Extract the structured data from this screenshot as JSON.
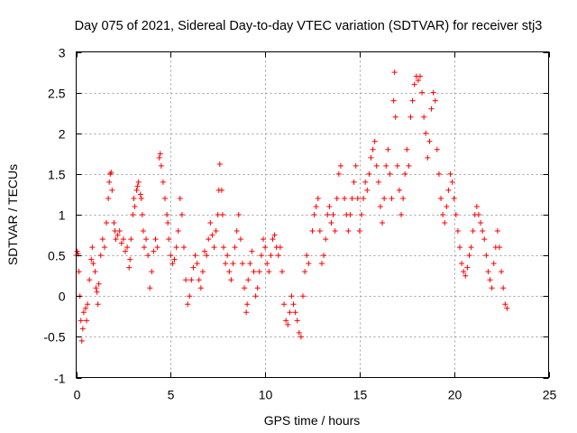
{
  "chart_data": {
    "type": "scatter",
    "title": "Day 075 of 2021, Sidereal Day-to-day VTEC variation (SDTVAR) for receiver stj3",
    "xlabel": "GPS time / hours",
    "ylabel": "SDTVAR / TECUs",
    "xlim": [
      0,
      25
    ],
    "ylim": [
      -1,
      3
    ],
    "xticks": [
      0,
      5,
      10,
      15,
      20,
      25
    ],
    "yticks": [
      -1,
      -0.5,
      0,
      0.5,
      1,
      1.5,
      2,
      2.5,
      3
    ],
    "xtick_labels": [
      "0",
      "5",
      "10",
      "15",
      "20",
      "25"
    ],
    "ytick_labels": [
      "-1",
      "-0.5",
      "0",
      "0.5",
      "1",
      "1.5",
      "2",
      "2.5",
      "3"
    ],
    "grid": true,
    "legend": "none",
    "marker": "+",
    "color": "#ff0000",
    "series": [
      {
        "name": "SDTVAR",
        "points": [
          [
            0.0,
            0.5
          ],
          [
            0.05,
            0.55
          ],
          [
            0.1,
            0.52
          ],
          [
            0.15,
            0.3
          ],
          [
            0.2,
            0.0
          ],
          [
            0.25,
            -0.3
          ],
          [
            0.3,
            -0.55
          ],
          [
            0.35,
            -0.4
          ],
          [
            0.4,
            -0.2
          ],
          [
            0.5,
            -0.15
          ],
          [
            0.55,
            -0.3
          ],
          [
            0.6,
            -0.1
          ],
          [
            0.7,
            0.2
          ],
          [
            0.8,
            0.45
          ],
          [
            0.85,
            0.6
          ],
          [
            0.9,
            0.4
          ],
          [
            1.0,
            0.3
          ],
          [
            1.05,
            0.1
          ],
          [
            1.1,
            0.05
          ],
          [
            1.15,
            -0.1
          ],
          [
            1.2,
            0.15
          ],
          [
            1.3,
            0.5
          ],
          [
            1.4,
            0.7
          ],
          [
            1.5,
            0.6
          ],
          [
            1.6,
            0.9
          ],
          [
            1.7,
            1.2
          ],
          [
            1.75,
            1.4
          ],
          [
            1.8,
            1.5
          ],
          [
            1.85,
            1.52
          ],
          [
            1.9,
            1.3
          ],
          [
            2.0,
            0.9
          ],
          [
            2.05,
            0.8
          ],
          [
            2.1,
            0.7
          ],
          [
            2.2,
            0.75
          ],
          [
            2.3,
            0.8
          ],
          [
            2.4,
            0.65
          ],
          [
            2.5,
            0.7
          ],
          [
            2.6,
            0.55
          ],
          [
            2.7,
            0.6
          ],
          [
            2.8,
            0.35
          ],
          [
            2.85,
            0.45
          ],
          [
            2.9,
            0.7
          ],
          [
            3.0,
            1.0
          ],
          [
            3.05,
            1.2
          ],
          [
            3.1,
            1.1
          ],
          [
            3.2,
            1.3
          ],
          [
            3.25,
            1.35
          ],
          [
            3.3,
            1.4
          ],
          [
            3.4,
            1.25
          ],
          [
            3.45,
            1.2
          ],
          [
            3.5,
            1.0
          ],
          [
            3.55,
            0.8
          ],
          [
            3.6,
            0.6
          ],
          [
            3.7,
            0.7
          ],
          [
            3.8,
            0.5
          ],
          [
            3.9,
            0.1
          ],
          [
            4.0,
            0.3
          ],
          [
            4.1,
            0.55
          ],
          [
            4.2,
            0.7
          ],
          [
            4.3,
            0.6
          ],
          [
            4.4,
            1.7
          ],
          [
            4.45,
            1.75
          ],
          [
            4.5,
            1.6
          ],
          [
            4.6,
            1.4
          ],
          [
            4.7,
            1.2
          ],
          [
            4.8,
            1.0
          ],
          [
            4.85,
            0.9
          ],
          [
            4.9,
            0.7
          ],
          [
            5.0,
            0.5
          ],
          [
            5.1,
            0.4
          ],
          [
            5.2,
            0.45
          ],
          [
            5.3,
            0.6
          ],
          [
            5.4,
            0.8
          ],
          [
            5.5,
            1.2
          ],
          [
            5.6,
            1.0
          ],
          [
            5.7,
            0.6
          ],
          [
            5.8,
            0.2
          ],
          [
            5.9,
            -0.1
          ],
          [
            6.0,
            0.0
          ],
          [
            6.1,
            0.2
          ],
          [
            6.2,
            0.35
          ],
          [
            6.3,
            0.5
          ],
          [
            6.4,
            0.4
          ],
          [
            6.5,
            0.2
          ],
          [
            6.6,
            0.1
          ],
          [
            6.7,
            0.3
          ],
          [
            6.8,
            0.55
          ],
          [
            6.9,
            0.5
          ],
          [
            7.0,
            0.7
          ],
          [
            7.1,
            0.9
          ],
          [
            7.2,
            0.75
          ],
          [
            7.3,
            0.6
          ],
          [
            7.4,
            0.8
          ],
          [
            7.5,
            1.0
          ],
          [
            7.55,
            1.3
          ],
          [
            7.6,
            1.62
          ],
          [
            7.7,
            1.3
          ],
          [
            7.75,
            1.0
          ],
          [
            7.8,
            0.6
          ],
          [
            7.9,
            0.4
          ],
          [
            8.0,
            0.5
          ],
          [
            8.1,
            0.3
          ],
          [
            8.2,
            0.2
          ],
          [
            8.3,
            0.4
          ],
          [
            8.4,
            0.6
          ],
          [
            8.5,
            0.8
          ],
          [
            8.6,
            1.0
          ],
          [
            8.7,
            0.7
          ],
          [
            8.8,
            0.4
          ],
          [
            8.9,
            0.1
          ],
          [
            9.0,
            -0.2
          ],
          [
            9.05,
            -0.1
          ],
          [
            9.1,
            0.2
          ],
          [
            9.2,
            0.4
          ],
          [
            9.3,
            0.55
          ],
          [
            9.4,
            0.3
          ],
          [
            9.5,
            0.0
          ],
          [
            9.6,
            0.1
          ],
          [
            9.7,
            0.3
          ],
          [
            9.8,
            0.5
          ],
          [
            9.9,
            0.7
          ],
          [
            10.0,
            0.6
          ],
          [
            10.1,
            0.4
          ],
          [
            10.2,
            0.3
          ],
          [
            10.3,
            0.5
          ],
          [
            10.4,
            0.7
          ],
          [
            10.5,
            0.75
          ],
          [
            10.6,
            0.6
          ],
          [
            10.7,
            0.5
          ],
          [
            10.8,
            0.6
          ],
          [
            10.9,
            0.3
          ],
          [
            11.0,
            -0.1
          ],
          [
            11.1,
            -0.3
          ],
          [
            11.2,
            -0.35
          ],
          [
            11.3,
            -0.2
          ],
          [
            11.4,
            0.0
          ],
          [
            11.5,
            -0.1
          ],
          [
            11.6,
            -0.2
          ],
          [
            11.7,
            -0.3
          ],
          [
            11.8,
            -0.45
          ],
          [
            11.9,
            -0.5
          ],
          [
            12.0,
            0.0
          ],
          [
            12.1,
            0.3
          ],
          [
            12.2,
            0.5
          ],
          [
            12.3,
            0.4
          ],
          [
            12.5,
            0.8
          ],
          [
            12.6,
            1.0
          ],
          [
            12.7,
            1.1
          ],
          [
            12.8,
            1.2
          ],
          [
            12.9,
            0.8
          ],
          [
            13.0,
            0.4
          ],
          [
            13.1,
            0.5
          ],
          [
            13.2,
            0.7
          ],
          [
            13.3,
            1.0
          ],
          [
            13.4,
            1.1
          ],
          [
            13.5,
            0.9
          ],
          [
            13.6,
            1.0
          ],
          [
            13.7,
            0.8
          ],
          [
            13.8,
            1.2
          ],
          [
            13.9,
            1.5
          ],
          [
            14.0,
            1.6
          ],
          [
            14.2,
            1.2
          ],
          [
            14.3,
            1.0
          ],
          [
            14.4,
            0.8
          ],
          [
            14.5,
            1.0
          ],
          [
            14.6,
            1.2
          ],
          [
            14.7,
            1.4
          ],
          [
            14.8,
            1.6
          ],
          [
            14.9,
            1.2
          ],
          [
            15.0,
            0.8
          ],
          [
            15.1,
            1.0
          ],
          [
            15.2,
            1.2
          ],
          [
            15.3,
            1.4
          ],
          [
            15.4,
            1.3
          ],
          [
            15.5,
            1.5
          ],
          [
            15.6,
            1.7
          ],
          [
            15.7,
            1.8
          ],
          [
            15.8,
            1.9
          ],
          [
            15.9,
            1.6
          ],
          [
            16.0,
            1.4
          ],
          [
            16.1,
            1.1
          ],
          [
            16.2,
            0.9
          ],
          [
            16.3,
            1.2
          ],
          [
            16.4,
            1.6
          ],
          [
            16.5,
            1.8
          ],
          [
            16.6,
            1.5
          ],
          [
            16.7,
            1.2
          ],
          [
            16.8,
            2.4
          ],
          [
            16.85,
            2.75
          ],
          [
            16.9,
            2.2
          ],
          [
            17.0,
            1.6
          ],
          [
            17.1,
            1.3
          ],
          [
            17.2,
            1.0
          ],
          [
            17.3,
            1.2
          ],
          [
            17.4,
            1.5
          ],
          [
            17.5,
            1.8
          ],
          [
            17.6,
            1.6
          ],
          [
            17.7,
            2.2
          ],
          [
            17.8,
            2.4
          ],
          [
            17.9,
            2.6
          ],
          [
            18.0,
            2.7
          ],
          [
            18.1,
            2.65
          ],
          [
            18.2,
            2.7
          ],
          [
            18.3,
            2.5
          ],
          [
            18.4,
            2.2
          ],
          [
            18.5,
            2.0
          ],
          [
            18.6,
            1.7
          ],
          [
            18.7,
            1.9
          ],
          [
            18.8,
            2.3
          ],
          [
            18.9,
            2.5
          ],
          [
            19.0,
            2.4
          ],
          [
            19.1,
            1.8
          ],
          [
            19.2,
            1.5
          ],
          [
            19.3,
            1.2
          ],
          [
            19.4,
            1.0
          ],
          [
            19.5,
            0.9
          ],
          [
            19.6,
            1.1
          ],
          [
            19.7,
            1.3
          ],
          [
            19.8,
            1.5
          ],
          [
            19.9,
            1.4
          ],
          [
            20.0,
            1.2
          ],
          [
            20.1,
            1.0
          ],
          [
            20.2,
            0.8
          ],
          [
            20.3,
            0.6
          ],
          [
            20.4,
            0.4
          ],
          [
            20.5,
            0.3
          ],
          [
            20.6,
            0.25
          ],
          [
            20.7,
            0.35
          ],
          [
            20.8,
            0.5
          ],
          [
            20.9,
            0.6
          ],
          [
            21.0,
            0.8
          ],
          [
            21.1,
            1.0
          ],
          [
            21.2,
            1.1
          ],
          [
            21.3,
            1.0
          ],
          [
            21.4,
            0.9
          ],
          [
            21.5,
            0.8
          ],
          [
            21.6,
            0.7
          ],
          [
            21.7,
            0.5
          ],
          [
            21.8,
            0.3
          ],
          [
            21.9,
            0.2
          ],
          [
            22.0,
            0.1
          ],
          [
            22.1,
            0.4
          ],
          [
            22.2,
            0.6
          ],
          [
            22.3,
            0.8
          ],
          [
            22.4,
            0.6
          ],
          [
            22.5,
            0.3
          ],
          [
            22.6,
            0.1
          ],
          [
            22.7,
            -0.1
          ],
          [
            22.8,
            -0.15
          ]
        ]
      }
    ]
  }
}
